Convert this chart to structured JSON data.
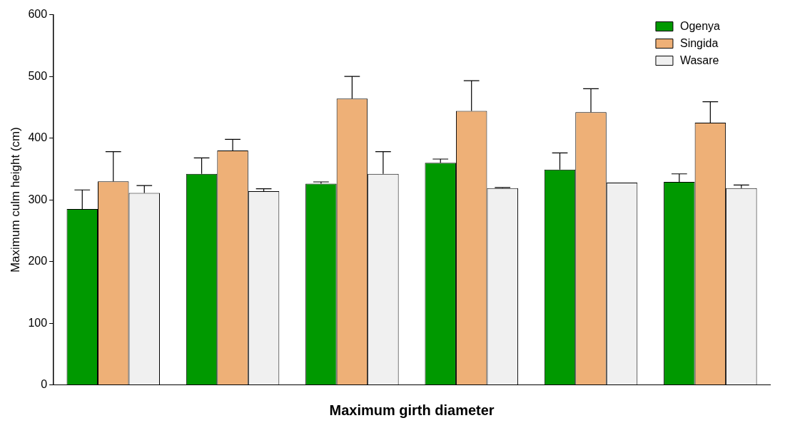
{
  "chart_data": {
    "type": "bar",
    "xlabel": "Maximum girth diameter",
    "ylabel": "Maximum culm height (cm)",
    "categories": [
      null,
      null,
      null,
      null,
      null,
      null
    ],
    "series": [
      {
        "name": "Ogenya",
        "color": "#009900",
        "values": [
          285,
          342,
          326,
          360,
          349,
          329
        ],
        "errors": [
          [
            285,
            316
          ],
          [
            342,
            368
          ],
          [
            326,
            329
          ],
          [
            360,
            366
          ],
          [
            349,
            376
          ],
          [
            329,
            342
          ]
        ]
      },
      {
        "name": "Singida",
        "color": "#eeb077",
        "values": [
          330,
          380,
          464,
          444,
          442,
          425
        ],
        "errors": [
          [
            330,
            378
          ],
          [
            380,
            398
          ],
          [
            464,
            500
          ],
          [
            444,
            493
          ],
          [
            442,
            480
          ],
          [
            425,
            459
          ]
        ]
      },
      {
        "name": "Wasare",
        "color": "#f0f0f0",
        "values": [
          311,
          314,
          342,
          319,
          328,
          319
        ],
        "errors": [
          [
            311,
            323
          ],
          [
            314,
            318
          ],
          [
            342,
            378
          ],
          [
            319,
            320
          ],
          null,
          [
            319,
            324
          ]
        ]
      }
    ],
    "ylim": [
      0,
      600
    ],
    "yticks": [
      0,
      100,
      200,
      300,
      400,
      500,
      600
    ],
    "grid": false,
    "legend": "top right"
  }
}
